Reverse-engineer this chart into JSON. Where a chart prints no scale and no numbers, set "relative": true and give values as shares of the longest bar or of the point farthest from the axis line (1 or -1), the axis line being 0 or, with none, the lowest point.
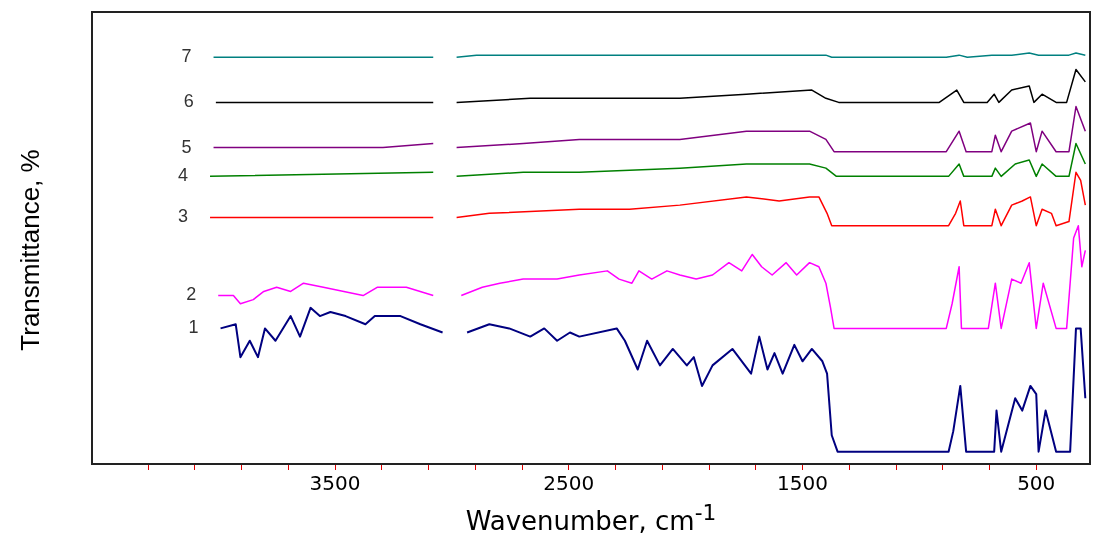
{
  "chart_data": {
    "type": "line",
    "xlabel": "Wavenumber, cm$^{-1}$",
    "ylabel": "Transmittance, %",
    "relative": true,
    "marker": "none",
    "xlim": [
      4540,
      270
    ],
    "xticks": [
      {
        "value": 4300,
        "label": null
      },
      {
        "value": 4100,
        "label": null
      },
      {
        "value": 3900,
        "label": null
      },
      {
        "value": 3700,
        "label": null
      },
      3500,
      {
        "value": 3300,
        "label": null
      },
      {
        "value": 3100,
        "label": null
      },
      {
        "value": 2900,
        "label": null
      },
      {
        "value": 2700,
        "label": null
      },
      2500,
      {
        "value": 2300,
        "label": null
      },
      {
        "value": 2100,
        "label": null
      },
      {
        "value": 1900,
        "label": null
      },
      {
        "value": 1700,
        "label": null
      },
      1500,
      {
        "value": 1300,
        "label": null
      },
      {
        "value": 1100,
        "label": null
      },
      {
        "value": 900,
        "label": null
      },
      {
        "value": 700,
        "label": null
      },
      500
    ],
    "series": [
      {
        "name": "1",
        "color": "#000080",
        "x": [
          3990,
          3925,
          3905,
          3865,
          3830,
          3800,
          3755,
          3690,
          3650,
          3605,
          3565,
          3520,
          3455,
          3370,
          3330,
          3220,
          3135,
          3040,
          3010,
          2935,
          2840,
          2755,
          2665,
          2605,
          2550,
          2495,
          2455,
          2295,
          2260,
          2205,
          2165,
          2110,
          2055,
          1995,
          1965,
          1930,
          1885,
          1800,
          1720,
          1685,
          1650,
          1620,
          1585,
          1535,
          1500,
          1460,
          1415,
          1395,
          1375,
          1350,
          875,
          855,
          825,
          800,
          680,
          670,
          650,
          590,
          560,
          525,
          500,
          490,
          460,
          415,
          355,
          330,
          310,
          290
        ],
        "values": [
          0.33,
          0.34,
          0.26,
          0.3,
          0.26,
          0.33,
          0.3,
          0.36,
          0.31,
          0.38,
          0.36,
          0.37,
          0.36,
          0.34,
          0.36,
          0.36,
          0.34,
          0.32,
          null,
          0.32,
          0.34,
          0.33,
          0.31,
          0.33,
          0.3,
          0.32,
          0.31,
          0.33,
          0.3,
          0.23,
          0.3,
          0.24,
          0.28,
          0.24,
          0.26,
          0.19,
          0.24,
          0.28,
          0.22,
          0.31,
          0.23,
          0.27,
          0.22,
          0.29,
          0.25,
          0.28,
          0.25,
          0.22,
          0.07,
          0.03,
          0.03,
          0.08,
          0.19,
          0.03,
          0.03,
          0.13,
          0.03,
          0.16,
          0.13,
          0.19,
          0.17,
          0.03,
          0.13,
          0.03,
          0.03,
          0.33,
          0.33,
          0.16
        ]
      },
      {
        "name": "2",
        "color": "#ff00ff",
        "x": [
          4000,
          3935,
          3905,
          3850,
          3805,
          3750,
          3690,
          3635,
          3550,
          3380,
          3320,
          3195,
          3080,
          3030,
          2960,
          2870,
          2795,
          2695,
          2550,
          2455,
          2335,
          2285,
          2230,
          2200,
          2145,
          2080,
          2025,
          1955,
          1885,
          1815,
          1760,
          1715,
          1675,
          1630,
          1570,
          1525,
          1470,
          1430,
          1400,
          1380,
          1365,
          885,
          860,
          830,
          820,
          705,
          675,
          650,
          605,
          565,
          530,
          500,
          470,
          415,
          370,
          340,
          320,
          305,
          290
        ],
        "values": [
          0.41,
          0.41,
          0.39,
          0.4,
          0.42,
          0.43,
          0.42,
          0.44,
          0.43,
          0.41,
          0.43,
          0.43,
          0.41,
          null,
          0.41,
          0.43,
          0.44,
          0.45,
          0.45,
          0.46,
          0.47,
          0.45,
          0.44,
          0.47,
          0.45,
          0.47,
          0.46,
          0.45,
          0.46,
          0.49,
          0.47,
          0.51,
          0.48,
          0.46,
          0.49,
          0.46,
          0.49,
          0.48,
          0.44,
          0.38,
          0.33,
          0.33,
          0.39,
          0.48,
          0.33,
          0.33,
          0.44,
          0.33,
          0.45,
          0.44,
          0.49,
          0.33,
          0.44,
          0.33,
          0.33,
          0.55,
          0.58,
          0.48,
          0.52
        ]
      },
      {
        "name": "3",
        "color": "#ff0000",
        "x": [
          4035,
          3875,
          3690,
          3265,
          3080,
          3030,
          2980,
          2840,
          2455,
          2240,
          2025,
          1740,
          1600,
          1470,
          1430,
          1395,
          1375,
          875,
          845,
          825,
          810,
          690,
          675,
          650,
          605,
          560,
          525,
          500,
          475,
          435,
          415,
          360,
          330,
          310,
          290
        ],
        "values": [
          0.6,
          0.6,
          0.6,
          0.6,
          0.6,
          null,
          0.6,
          0.61,
          0.62,
          0.62,
          0.63,
          0.65,
          0.64,
          0.65,
          0.65,
          0.61,
          0.58,
          0.58,
          0.61,
          0.64,
          0.58,
          0.58,
          0.62,
          0.58,
          0.63,
          0.64,
          0.65,
          0.58,
          0.62,
          0.61,
          0.58,
          0.59,
          0.71,
          0.69,
          0.63
        ]
      },
      {
        "name": "4",
        "color": "#008000",
        "x": [
          4035,
          3080,
          3030,
          2980,
          2695,
          2455,
          2025,
          1740,
          1470,
          1400,
          1355,
          875,
          830,
          810,
          690,
          675,
          650,
          590,
          530,
          500,
          475,
          415,
          360,
          330,
          290
        ],
        "values": [
          0.7,
          0.71,
          null,
          0.7,
          0.71,
          0.71,
          0.72,
          0.73,
          0.73,
          0.72,
          0.7,
          0.7,
          0.73,
          0.7,
          0.7,
          0.72,
          0.7,
          0.73,
          0.74,
          0.7,
          0.73,
          0.7,
          0.7,
          0.78,
          0.73
        ]
      },
      {
        "name": "5",
        "color": "#800080",
        "x": [
          4020,
          3295,
          3080,
          3030,
          2980,
          2695,
          2455,
          2025,
          1740,
          1470,
          1400,
          1365,
          885,
          830,
          800,
          690,
          675,
          650,
          605,
          525,
          500,
          475,
          415,
          360,
          330,
          290
        ],
        "values": [
          0.77,
          0.77,
          0.78,
          null,
          0.77,
          0.78,
          0.79,
          0.79,
          0.81,
          0.81,
          0.79,
          0.76,
          0.76,
          0.81,
          0.76,
          0.76,
          0.8,
          0.76,
          0.81,
          0.83,
          0.76,
          0.81,
          0.76,
          0.76,
          0.87,
          0.81
        ]
      },
      {
        "name": "6",
        "color": "#000000",
        "x": [
          4010,
          3080,
          3030,
          2980,
          2665,
          2455,
          2025,
          1740,
          1460,
          1400,
          1345,
          915,
          840,
          810,
          710,
          680,
          660,
          605,
          530,
          510,
          475,
          415,
          370,
          330,
          290
        ],
        "values": [
          0.88,
          0.88,
          null,
          0.88,
          0.89,
          0.89,
          0.89,
          0.9,
          0.91,
          0.89,
          0.88,
          0.88,
          0.91,
          0.88,
          0.88,
          0.9,
          0.88,
          0.91,
          0.92,
          0.88,
          0.9,
          0.88,
          0.88,
          0.96,
          0.93
        ]
      },
      {
        "name": "7",
        "color": "#008080",
        "x": [
          4020,
          3080,
          3030,
          2980,
          2895,
          2410,
          1740,
          1400,
          1375,
          885,
          830,
          795,
          690,
          605,
          530,
          490,
          360,
          330,
          290
        ],
        "values": [
          0.99,
          0.99,
          null,
          0.99,
          0.995,
          0.995,
          0.995,
          0.995,
          0.99,
          0.99,
          0.995,
          0.99,
          0.995,
          0.995,
          1.0,
          0.995,
          0.995,
          1.0,
          0.995
        ]
      }
    ]
  }
}
